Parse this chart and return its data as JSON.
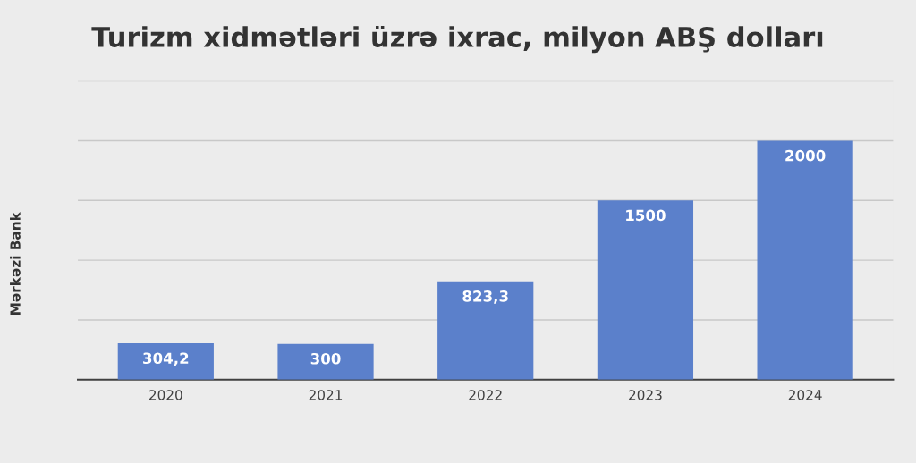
{
  "chart_data": {
    "type": "bar",
    "title": "Turizm xidmətləri üzrə ixrac, milyon ABŞ dolları",
    "ylabel": "Mərkəzi Bank",
    "categories": [
      "2020",
      "2021",
      "2022",
      "2023",
      "2024"
    ],
    "values": [
      304.2,
      300,
      823.3,
      1500,
      2000
    ],
    "value_labels": [
      "304,2",
      "300",
      "823,3",
      "1500",
      "2000"
    ],
    "color": "#5b80cb",
    "ylim": [
      0,
      2500
    ],
    "yticks": [
      {
        "value": 0,
        "label": null
      },
      {
        "value": 500,
        "label": null
      },
      {
        "value": 1000,
        "label": null
      },
      {
        "value": 1500,
        "label": null
      },
      {
        "value": 2000,
        "label": null
      },
      {
        "value": 2500,
        "label": null
      }
    ],
    "tick_labels": "x",
    "grid": "y",
    "legend": false
  }
}
